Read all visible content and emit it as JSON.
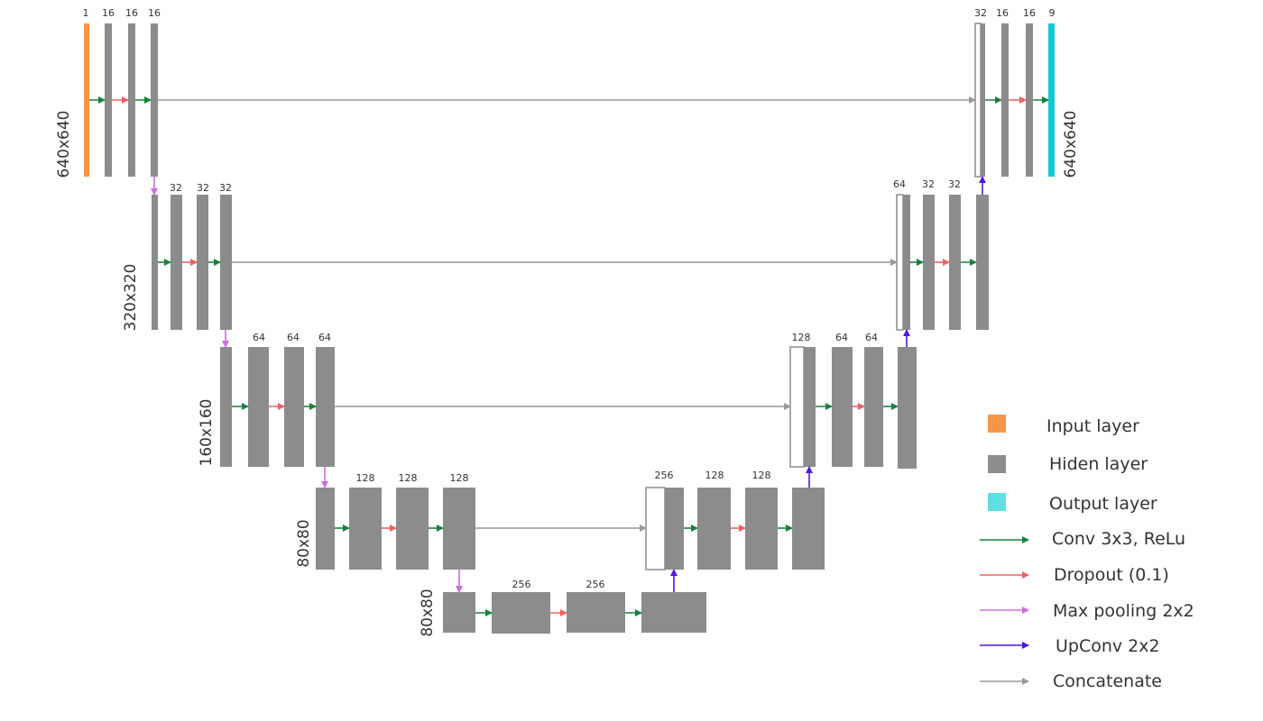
{
  "colors": {
    "input": "#F79646",
    "hidden": "#8C8C8C",
    "output": "#14C8D2",
    "output_swatch": "#5FE0E4",
    "conv": "#1A8040",
    "dropout": "#F26060",
    "maxpool": "#CC6EE0",
    "upconv": "#5018DC",
    "concat": "#999999"
  },
  "levels": [
    {
      "resolution": "640x640",
      "encoder_channels": [
        "1",
        "16",
        "16",
        "16"
      ],
      "decoder_channels": [
        "32",
        "16",
        "16",
        "9"
      ]
    },
    {
      "resolution": "320x320",
      "encoder_channels": [
        "32",
        "32",
        "32"
      ],
      "decoder_channels": [
        "64",
        "32",
        "32"
      ]
    },
    {
      "resolution": "160x160",
      "encoder_channels": [
        "64",
        "64",
        "64"
      ],
      "decoder_channels": [
        "128",
        "64",
        "64"
      ]
    },
    {
      "resolution": "80x80",
      "encoder_channels": [
        "128",
        "128",
        "128"
      ],
      "decoder_channels": [
        "256",
        "128",
        "128"
      ]
    },
    {
      "resolution": "80x80",
      "bottleneck_channels": [
        "256",
        "256"
      ]
    }
  ],
  "legend": {
    "input_layer": "Input layer",
    "hidden_layer": "Hiden layer",
    "output_layer": "Output layer",
    "conv": "Conv 3x3, ReLu",
    "dropout": "Dropout (0.1)",
    "maxpool": "Max pooling 2x2",
    "upconv": "UpConv 2x2",
    "concat": "Concatenate"
  }
}
